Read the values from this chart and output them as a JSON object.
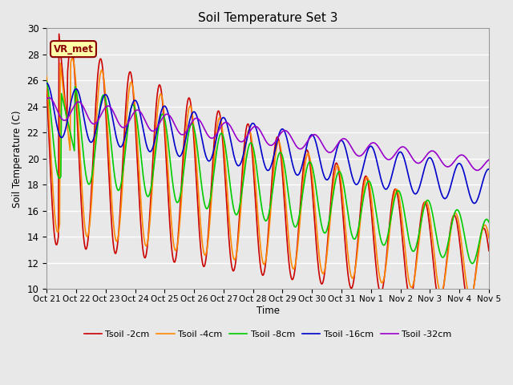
{
  "title": "Soil Temperature Set 3",
  "xlabel": "Time",
  "ylabel": "Soil Temperature (C)",
  "ylim": [
    10,
    30
  ],
  "bg_color": "#e8e8e8",
  "plot_bg_color": "#e8e8e8",
  "grid_color": "white",
  "series": {
    "Tsoil -2cm": {
      "color": "#cc0000",
      "lw": 1.2
    },
    "Tsoil -4cm": {
      "color": "#ff8800",
      "lw": 1.2
    },
    "Tsoil -8cm": {
      "color": "#00cc00",
      "lw": 1.2
    },
    "Tsoil -16cm": {
      "color": "#0000cc",
      "lw": 1.2
    },
    "Tsoil -32cm": {
      "color": "#9900cc",
      "lw": 1.2
    }
  },
  "xtick_labels": [
    "Oct 21",
    "Oct 22",
    "Oct 23",
    "Oct 24",
    "Oct 25",
    "Oct 26",
    "Oct 27",
    "Oct 28",
    "Oct 29",
    "Oct 30",
    "Oct 31",
    "Nov 1",
    "Nov 2",
    "Nov 3",
    "Nov 4",
    "Nov 5"
  ],
  "annotation": "VR_met"
}
